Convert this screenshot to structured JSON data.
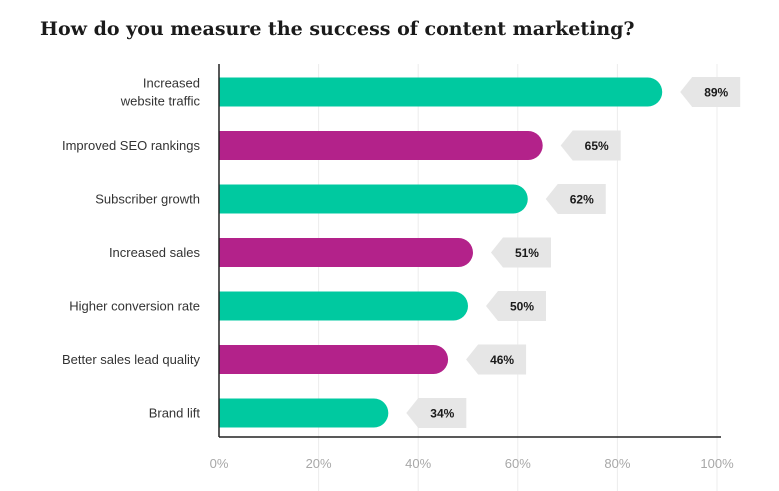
{
  "colors": {
    "teal": "#00c9a0",
    "magenta": "#b3228a",
    "label_bg": "#e6e6e6",
    "axis": "#222222",
    "grid": "#ececec"
  },
  "chart_data": {
    "type": "bar",
    "orientation": "horizontal",
    "title": "How do you measure the success of content marketing?",
    "categories": [
      [
        "Increased",
        "website traffic"
      ],
      [
        "Improved SEO rankings"
      ],
      [
        "Subscriber growth"
      ],
      [
        "Increased sales"
      ],
      [
        "Higher conversion rate"
      ],
      [
        "Better sales lead quality"
      ],
      [
        "Brand lift"
      ]
    ],
    "values": [
      89,
      65,
      62,
      51,
      50,
      46,
      34
    ],
    "value_labels": [
      "89%",
      "65%",
      "62%",
      "51%",
      "50%",
      "46%",
      "34%"
    ],
    "bar_colors": [
      "teal",
      "magenta",
      "teal",
      "magenta",
      "teal",
      "magenta",
      "teal"
    ],
    "xlim": [
      0,
      100
    ],
    "xticks": [
      0,
      20,
      40,
      60,
      80,
      100
    ],
    "xtick_labels": [
      "0%",
      "20%",
      "40%",
      "60%",
      "80%",
      "100%"
    ],
    "xlabel": "",
    "ylabel": "",
    "grid": true
  }
}
